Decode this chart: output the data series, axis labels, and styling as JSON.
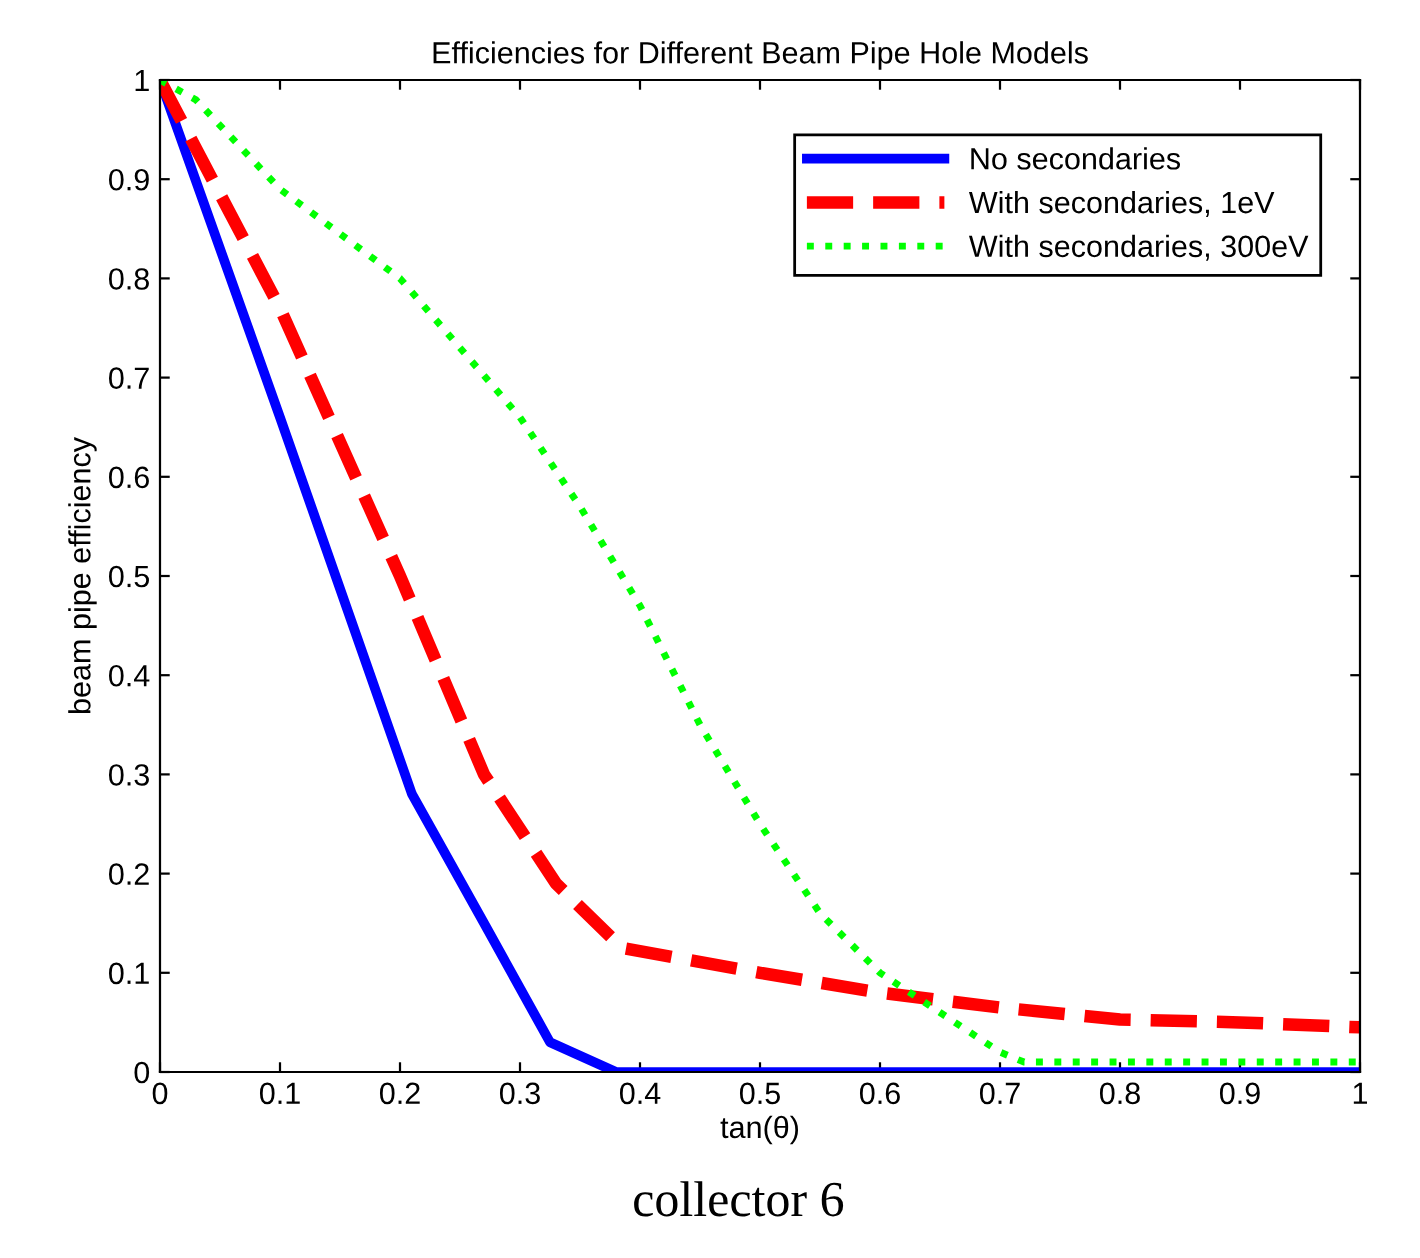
{
  "chart_data": {
    "type": "line",
    "title": "Efficiencies for Different Beam Pipe Hole Models",
    "xlabel": "tan(θ)",
    "ylabel": "beam pipe efficiency",
    "annotations": [
      "collector 6"
    ],
    "xlim": [
      0,
      1
    ],
    "ylim": [
      0,
      1
    ],
    "xticks": [
      0,
      0.1,
      0.2,
      0.3,
      0.4,
      0.5,
      0.6,
      0.7,
      0.8,
      0.9,
      1
    ],
    "yticks": [
      0,
      0.1,
      0.2,
      0.3,
      0.4,
      0.5,
      0.6,
      0.7,
      0.8,
      0.9,
      1
    ],
    "grid": false,
    "legend": "top right",
    "series": [
      {
        "name": "No secondaries",
        "color": "#0000ff",
        "line_style": "solid",
        "x": [
          0,
          0.1,
          0.21,
          0.27,
          0.325,
          0.38,
          1
        ],
        "values": [
          1,
          0.66,
          0.28,
          0.15,
          0.03,
          0,
          0
        ]
      },
      {
        "name": "With secondaries, 1eV",
        "color": "#ff0000",
        "line_style": "dashed",
        "x": [
          0,
          0.1,
          0.2,
          0.27,
          0.33,
          0.385,
          0.5,
          0.6,
          0.7,
          0.8,
          0.9,
          1
        ],
        "values": [
          1,
          0.77,
          0.5,
          0.3,
          0.19,
          0.125,
          0.1,
          0.08,
          0.065,
          0.053,
          0.05,
          0.045
        ]
      },
      {
        "name": "With secondaries, 300eV",
        "color": "#00ff00",
        "line_style": "dotted",
        "x": [
          0,
          0.03,
          0.1,
          0.2,
          0.3,
          0.35,
          0.4,
          0.45,
          0.5,
          0.55,
          0.6,
          0.65,
          0.7,
          0.72,
          1
        ],
        "values": [
          1,
          0.98,
          0.89,
          0.8,
          0.66,
          0.57,
          0.47,
          0.35,
          0.25,
          0.16,
          0.1,
          0.06,
          0.02,
          0.01,
          0.01
        ]
      }
    ]
  }
}
